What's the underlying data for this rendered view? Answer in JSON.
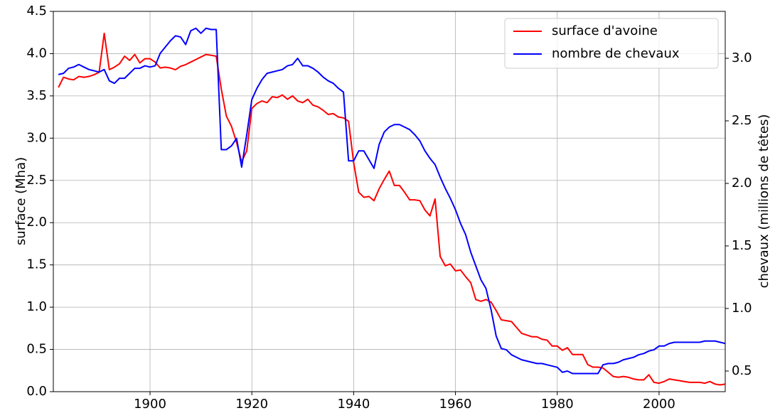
{
  "chart_data": {
    "type": "line",
    "ylabel": "surface (Mha)",
    "y2label": "chevaux (millions de têtes)",
    "x": [
      1882,
      1883,
      1884,
      1885,
      1886,
      1887,
      1888,
      1889,
      1890,
      1891,
      1892,
      1893,
      1894,
      1895,
      1896,
      1897,
      1898,
      1899,
      1900,
      1901,
      1902,
      1903,
      1904,
      1905,
      1906,
      1907,
      1908,
      1909,
      1910,
      1911,
      1912,
      1913,
      1914,
      1915,
      1916,
      1917,
      1918,
      1919,
      1920,
      1921,
      1922,
      1923,
      1924,
      1925,
      1926,
      1927,
      1928,
      1929,
      1930,
      1931,
      1932,
      1933,
      1934,
      1935,
      1936,
      1937,
      1938,
      1939,
      1940,
      1941,
      1942,
      1943,
      1944,
      1945,
      1946,
      1947,
      1948,
      1949,
      1950,
      1951,
      1952,
      1953,
      1954,
      1955,
      1956,
      1957,
      1958,
      1959,
      1960,
      1961,
      1962,
      1963,
      1964,
      1965,
      1966,
      1967,
      1968,
      1969,
      1970,
      1971,
      1972,
      1973,
      1974,
      1975,
      1976,
      1977,
      1978,
      1979,
      1980,
      1981,
      1982,
      1983,
      1984,
      1985,
      1986,
      1987,
      1988,
      1989,
      1990,
      1991,
      1992,
      1993,
      1994,
      1995,
      1996,
      1997,
      1998,
      1999,
      2000,
      2001,
      2002,
      2003,
      2004,
      2005,
      2006,
      2007,
      2008,
      2009,
      2010,
      2011,
      2012,
      2013
    ],
    "series": [
      {
        "name": "surface d'avoine",
        "color": "#ff0000",
        "axis": "y",
        "values": [
          3.6,
          3.72,
          3.7,
          3.69,
          3.73,
          3.72,
          3.73,
          3.75,
          3.78,
          4.24,
          3.81,
          3.84,
          3.88,
          3.97,
          3.92,
          3.99,
          3.89,
          3.94,
          3.94,
          3.9,
          3.83,
          3.84,
          3.83,
          3.81,
          3.85,
          3.87,
          3.9,
          3.93,
          3.96,
          3.99,
          3.98,
          3.97,
          3.58,
          3.26,
          3.14,
          2.95,
          2.72,
          2.85,
          3.35,
          3.41,
          3.44,
          3.42,
          3.49,
          3.48,
          3.51,
          3.46,
          3.5,
          3.44,
          3.42,
          3.46,
          3.39,
          3.37,
          3.33,
          3.28,
          3.29,
          3.25,
          3.24,
          3.2,
          2.71,
          2.36,
          2.3,
          2.31,
          2.26,
          2.4,
          2.51,
          2.61,
          2.44,
          2.44,
          2.36,
          2.27,
          2.27,
          2.26,
          2.15,
          2.08,
          2.28,
          1.6,
          1.49,
          1.51,
          1.43,
          1.44,
          1.36,
          1.29,
          1.09,
          1.07,
          1.09,
          1.06,
          0.96,
          0.85,
          0.84,
          0.83,
          0.76,
          0.69,
          0.67,
          0.65,
          0.65,
          0.62,
          0.61,
          0.54,
          0.54,
          0.49,
          0.52,
          0.44,
          0.44,
          0.44,
          0.32,
          0.29,
          0.29,
          0.28,
          0.23,
          0.18,
          0.17,
          0.18,
          0.17,
          0.15,
          0.14,
          0.14,
          0.2,
          0.11,
          0.1,
          0.12,
          0.15,
          0.14,
          0.13,
          0.12,
          0.11,
          0.11,
          0.11,
          0.1,
          0.12,
          0.09,
          0.08,
          0.09
        ]
      },
      {
        "name": "nombre de chevaux",
        "color": "#0000ff",
        "axis": "y2",
        "values": [
          2.87,
          2.88,
          2.92,
          2.93,
          2.95,
          2.93,
          2.91,
          2.9,
          2.89,
          2.91,
          2.82,
          2.8,
          2.84,
          2.84,
          2.88,
          2.92,
          2.92,
          2.94,
          2.93,
          2.94,
          3.04,
          3.09,
          3.14,
          3.18,
          3.17,
          3.11,
          3.22,
          3.24,
          3.2,
          3.24,
          3.23,
          3.23,
          2.27,
          2.27,
          2.3,
          2.36,
          2.13,
          2.39,
          2.67,
          2.76,
          2.83,
          2.88,
          2.89,
          2.9,
          2.91,
          2.94,
          2.95,
          3.0,
          2.94,
          2.94,
          2.92,
          2.89,
          2.85,
          2.82,
          2.8,
          2.76,
          2.73,
          2.18,
          2.18,
          2.26,
          2.26,
          2.19,
          2.12,
          2.31,
          2.41,
          2.45,
          2.47,
          2.47,
          2.45,
          2.43,
          2.39,
          2.34,
          2.26,
          2.2,
          2.15,
          2.05,
          1.96,
          1.88,
          1.79,
          1.68,
          1.59,
          1.45,
          1.34,
          1.23,
          1.16,
          0.99,
          0.78,
          0.68,
          0.67,
          0.63,
          0.61,
          0.59,
          0.58,
          0.57,
          0.56,
          0.56,
          0.55,
          0.54,
          0.53,
          0.49,
          0.5,
          0.48,
          0.48,
          0.48,
          0.48,
          0.48,
          0.48,
          0.55,
          0.56,
          0.56,
          0.57,
          0.59,
          0.6,
          0.61,
          0.63,
          0.64,
          0.66,
          0.67,
          0.7,
          0.7,
          0.72,
          0.73,
          0.73,
          0.73,
          0.73,
          0.73,
          0.73,
          0.74,
          0.74,
          0.74,
          0.73,
          0.72
        ]
      }
    ],
    "xlim": [
      1881,
      2013
    ],
    "xticks": [
      1900,
      1920,
      1940,
      1960,
      1980,
      2000
    ],
    "ylim": [
      0,
      4.5
    ],
    "yticks": [
      {
        "value": 0,
        "label": "0.0"
      },
      0.5,
      {
        "value": 1,
        "label": "1.0"
      },
      1.5,
      {
        "value": 2,
        "label": "2.0"
      },
      2.5,
      {
        "value": 3,
        "label": "3.0"
      },
      3.5,
      {
        "value": 4,
        "label": "4.0"
      },
      4.5
    ],
    "y2lim": [
      0.335,
      3.375
    ],
    "y2ticks": [
      0.5,
      {
        "value": 1,
        "label": "1.0"
      },
      1.5,
      {
        "value": 2,
        "label": "2.0"
      },
      2.5,
      {
        "value": 3,
        "label": "3.0"
      }
    ],
    "grid": true,
    "legend": "upper right"
  }
}
